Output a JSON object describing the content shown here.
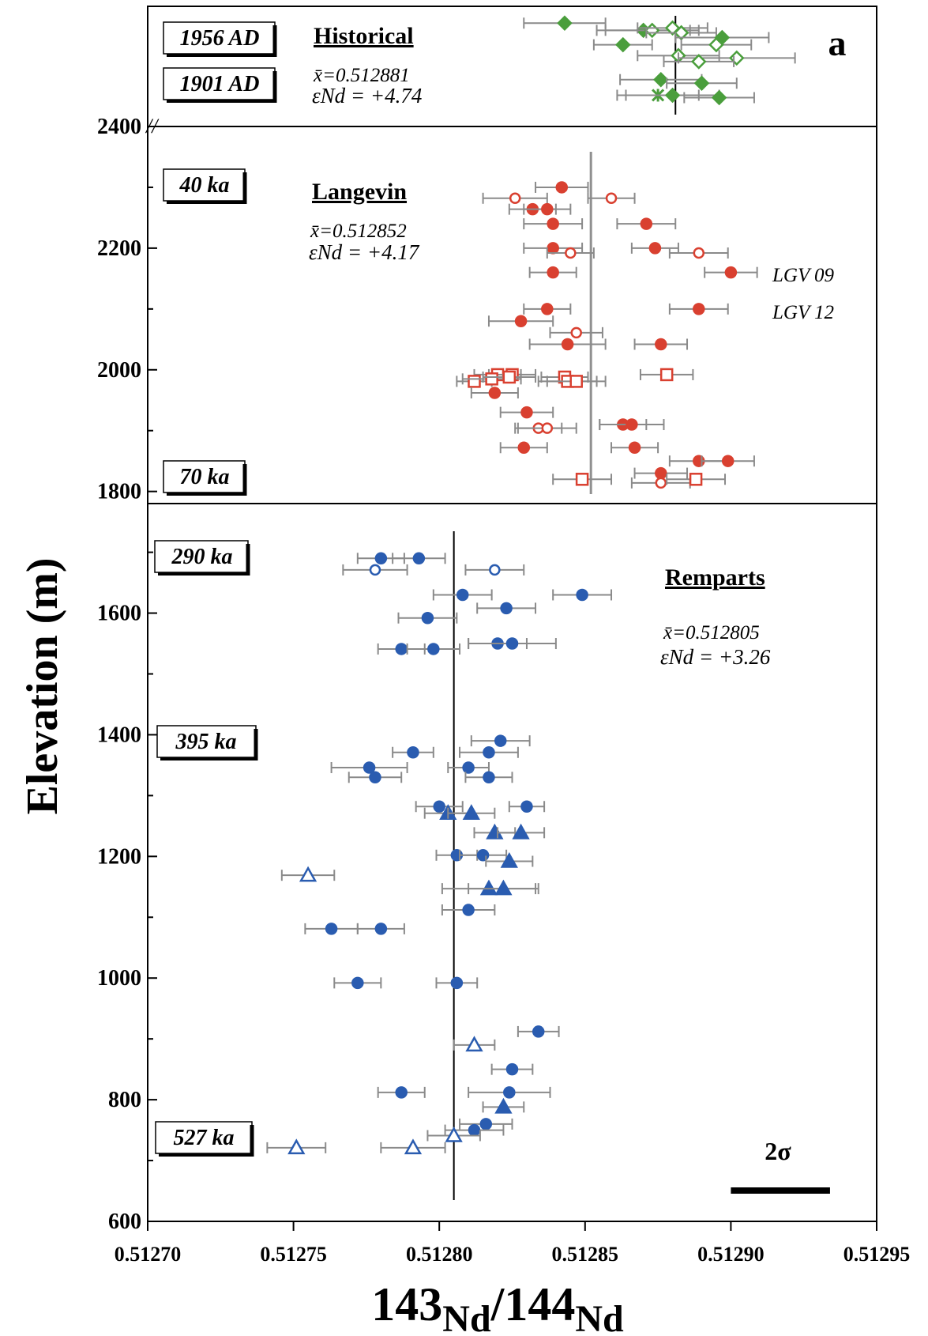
{
  "chart_data": {
    "type": "scatter",
    "panel_letter": "a",
    "xlabel_main": "Nd",
    "xlabel_sup1": "143",
    "xlabel_sup2": "144",
    "xlabel_slash": "/",
    "ylabel": "Elevation (m)",
    "xlim": [
      0.5127,
      0.51295
    ],
    "ylim": [
      600,
      2400
    ],
    "x_ticks": [
      "0.51270",
      "0.51275",
      "0.51280",
      "0.51285",
      "0.51290",
      "0.51295"
    ],
    "y_ticks": [
      "600",
      "800",
      "1000",
      "1200",
      "1400",
      "1600",
      "1800",
      "2000",
      "2200",
      "2400"
    ],
    "axis_break_mark": "//",
    "scale_bar": {
      "label": "2σ",
      "x_start": 0.5129,
      "x_end": 0.512934
    },
    "historical_panel": {
      "title": "Historical",
      "age_top": "1956 AD",
      "age_bottom": "1901 AD",
      "mean_text": "x̄=0.512881",
      "eps_text": "εNd = +4.74",
      "mean": 0.512881,
      "color": "#4a9e3c",
      "points": [
        {
          "x": 0.512843,
          "r": 0.86,
          "err": 1.4e-05,
          "marker": "diamond-filled"
        },
        {
          "x": 0.51287,
          "r": 0.8,
          "err": 1.6e-05,
          "marker": "diamond-filled"
        },
        {
          "x": 0.512873,
          "r": 0.8,
          "err": 1.6e-05,
          "marker": "diamond-open"
        },
        {
          "x": 0.51288,
          "r": 0.82,
          "err": 1.2e-05,
          "marker": "diamond-open"
        },
        {
          "x": 0.512883,
          "r": 0.78,
          "err": 1.2e-05,
          "marker": "diamond-open"
        },
        {
          "x": 0.512897,
          "r": 0.74,
          "err": 1.6e-05,
          "marker": "diamond-filled"
        },
        {
          "x": 0.512895,
          "r": 0.68,
          "err": 1.2e-05,
          "marker": "diamond-open"
        },
        {
          "x": 0.512863,
          "r": 0.68,
          "err": 1e-05,
          "marker": "diamond-filled"
        },
        {
          "x": 0.512882,
          "r": 0.59,
          "err": 1.4e-05,
          "marker": "diamond-open"
        },
        {
          "x": 0.512902,
          "r": 0.57,
          "err": 2e-05,
          "marker": "diamond-open"
        },
        {
          "x": 0.512889,
          "r": 0.54,
          "err": 1.2e-05,
          "marker": "diamond-open"
        },
        {
          "x": 0.512876,
          "r": 0.39,
          "err": 1.4e-05,
          "marker": "diamond-filled"
        },
        {
          "x": 0.51289,
          "r": 0.36,
          "err": 1.2e-05,
          "marker": "diamond-filled"
        },
        {
          "x": 0.512875,
          "r": 0.26,
          "err": 1.4e-05,
          "marker": "asterisk"
        },
        {
          "x": 0.51288,
          "r": 0.26,
          "err": 1.6e-05,
          "marker": "diamond-filled"
        },
        {
          "x": 0.512896,
          "r": 0.24,
          "err": 1.2e-05,
          "marker": "diamond-filled"
        }
      ]
    },
    "langevin_panel": {
      "title": "Langevin",
      "age_top": "40 ka",
      "age_bottom": "70 ka",
      "mean_text": "x̄=0.512852",
      "eps_text": "εNd = +4.17",
      "mean": 0.512852,
      "label_1": "LGV 09",
      "label_2": "LGV 12",
      "color": "#d94030",
      "points": [
        {
          "x": 0.512842,
          "y": 2300,
          "err": 9e-06,
          "marker": "circle-filled"
        },
        {
          "x": 0.512826,
          "y": 2282,
          "err": 1.1e-05,
          "marker": "circle-open"
        },
        {
          "x": 0.512859,
          "y": 2282,
          "err": 8e-06,
          "marker": "circle-open"
        },
        {
          "x": 0.512832,
          "y": 2264,
          "err": 8e-06,
          "marker": "circle-filled"
        },
        {
          "x": 0.512837,
          "y": 2264,
          "err": 8e-06,
          "marker": "circle-filled"
        },
        {
          "x": 0.512839,
          "y": 2240,
          "err": 1e-05,
          "marker": "circle-filled"
        },
        {
          "x": 0.512871,
          "y": 2240,
          "err": 1e-05,
          "marker": "circle-filled"
        },
        {
          "x": 0.512839,
          "y": 2200,
          "err": 1e-05,
          "marker": "circle-filled"
        },
        {
          "x": 0.512845,
          "y": 2192,
          "err": 8e-06,
          "marker": "circle-open"
        },
        {
          "x": 0.512874,
          "y": 2200,
          "err": 8e-06,
          "marker": "circle-filled"
        },
        {
          "x": 0.512889,
          "y": 2192,
          "err": 1e-05,
          "marker": "circle-open"
        },
        {
          "x": 0.512839,
          "y": 2160,
          "err": 8e-06,
          "marker": "circle-filled"
        },
        {
          "x": 0.5129,
          "y": 2160,
          "err": 9e-06,
          "marker": "circle-filled",
          "label": "LGV 09"
        },
        {
          "x": 0.512837,
          "y": 2100,
          "err": 8e-06,
          "marker": "circle-filled"
        },
        {
          "x": 0.512889,
          "y": 2100,
          "err": 1e-05,
          "marker": "circle-filled",
          "label": "LGV 12"
        },
        {
          "x": 0.512828,
          "y": 2080,
          "err": 1.1e-05,
          "marker": "circle-filled"
        },
        {
          "x": 0.512847,
          "y": 2061,
          "err": 9e-06,
          "marker": "circle-open"
        },
        {
          "x": 0.512844,
          "y": 2042,
          "err": 1.3e-05,
          "marker": "circle-filled"
        },
        {
          "x": 0.512876,
          "y": 2042,
          "err": 9e-06,
          "marker": "circle-filled"
        },
        {
          "x": 0.51282,
          "y": 1992,
          "err": 8e-06,
          "marker": "square-open"
        },
        {
          "x": 0.512825,
          "y": 1992,
          "err": 8e-06,
          "marker": "square-open"
        },
        {
          "x": 0.512843,
          "y": 1988,
          "err": 8e-06,
          "marker": "square-open"
        },
        {
          "x": 0.512878,
          "y": 1992,
          "err": 9e-06,
          "marker": "square-open"
        },
        {
          "x": 0.512812,
          "y": 1981,
          "err": 6e-06,
          "marker": "square-open"
        },
        {
          "x": 0.512818,
          "y": 1985,
          "err": 1e-05,
          "marker": "square-open"
        },
        {
          "x": 0.512824,
          "y": 1988,
          "err": 9e-06,
          "marker": "square-open"
        },
        {
          "x": 0.512844,
          "y": 1981,
          "err": 1e-05,
          "marker": "square-open"
        },
        {
          "x": 0.512847,
          "y": 1981,
          "err": 1e-05,
          "marker": "square-open"
        },
        {
          "x": 0.512819,
          "y": 1962,
          "err": 8e-06,
          "marker": "circle-filled"
        },
        {
          "x": 0.51283,
          "y": 1930,
          "err": 9e-06,
          "marker": "circle-filled"
        },
        {
          "x": 0.512834,
          "y": 1904,
          "err": 8e-06,
          "marker": "circle-open"
        },
        {
          "x": 0.512837,
          "y": 1904,
          "err": 1e-05,
          "marker": "circle-open"
        },
        {
          "x": 0.512863,
          "y": 1910,
          "err": 8e-06,
          "marker": "circle-filled"
        },
        {
          "x": 0.512866,
          "y": 1910,
          "err": 1.1e-05,
          "marker": "circle-filled"
        },
        {
          "x": 0.512829,
          "y": 1872,
          "err": 8e-06,
          "marker": "circle-filled"
        },
        {
          "x": 0.512867,
          "y": 1872,
          "err": 8e-06,
          "marker": "circle-filled"
        },
        {
          "x": 0.512889,
          "y": 1850,
          "err": 1e-05,
          "marker": "circle-filled"
        },
        {
          "x": 0.512899,
          "y": 1850,
          "err": 9e-06,
          "marker": "circle-filled"
        },
        {
          "x": 0.512876,
          "y": 1830,
          "err": 9e-06,
          "marker": "circle-filled"
        },
        {
          "x": 0.512849,
          "y": 1820,
          "err": 1e-05,
          "marker": "square-open"
        },
        {
          "x": 0.512876,
          "y": 1814,
          "err": 1e-05,
          "marker": "circle-open"
        },
        {
          "x": 0.512888,
          "y": 1820,
          "err": 1e-05,
          "marker": "square-open"
        }
      ]
    },
    "remparts_panel": {
      "title": "Remparts",
      "age_top": "290 ka",
      "age_middle": "395 ka",
      "age_bottom": "527 ka",
      "mean_text": "x̄=0.512805",
      "eps_text": "εNd = +3.26",
      "mean": 0.512805,
      "color": "#2a5cb0",
      "points": [
        {
          "x": 0.51278,
          "y": 1690,
          "err": 8e-06,
          "marker": "circle-filled"
        },
        {
          "x": 0.512793,
          "y": 1690,
          "err": 9e-06,
          "marker": "circle-filled"
        },
        {
          "x": 0.512778,
          "y": 1671,
          "err": 1.1e-05,
          "marker": "circle-open"
        },
        {
          "x": 0.512819,
          "y": 1671,
          "err": 1e-05,
          "marker": "circle-open"
        },
        {
          "x": 0.512808,
          "y": 1630,
          "err": 1e-05,
          "marker": "circle-filled"
        },
        {
          "x": 0.512849,
          "y": 1630,
          "err": 1e-05,
          "marker": "circle-filled"
        },
        {
          "x": 0.512796,
          "y": 1592,
          "err": 1e-05,
          "marker": "circle-filled"
        },
        {
          "x": 0.512823,
          "y": 1608,
          "err": 1e-05,
          "marker": "circle-filled"
        },
        {
          "x": 0.512787,
          "y": 1541,
          "err": 8e-06,
          "marker": "circle-filled"
        },
        {
          "x": 0.512798,
          "y": 1541,
          "err": 9e-06,
          "marker": "circle-filled"
        },
        {
          "x": 0.51282,
          "y": 1550,
          "err": 1e-05,
          "marker": "circle-filled"
        },
        {
          "x": 0.512825,
          "y": 1550,
          "err": 1.5e-05,
          "marker": "circle-filled"
        },
        {
          "x": 0.512821,
          "y": 1390,
          "err": 1e-05,
          "marker": "circle-filled"
        },
        {
          "x": 0.512791,
          "y": 1371,
          "err": 7e-06,
          "marker": "circle-filled"
        },
        {
          "x": 0.512817,
          "y": 1371,
          "err": 1e-05,
          "marker": "circle-filled"
        },
        {
          "x": 0.512776,
          "y": 1346,
          "err": 1.3e-05,
          "marker": "circle-filled"
        },
        {
          "x": 0.51281,
          "y": 1346,
          "err": 7e-06,
          "marker": "circle-filled"
        },
        {
          "x": 0.512778,
          "y": 1330,
          "err": 9e-06,
          "marker": "circle-filled"
        },
        {
          "x": 0.512817,
          "y": 1330,
          "err": 8e-06,
          "marker": "circle-filled"
        },
        {
          "x": 0.5128,
          "y": 1282,
          "err": 8e-06,
          "marker": "circle-filled"
        },
        {
          "x": 0.51283,
          "y": 1282,
          "err": 6e-06,
          "marker": "circle-filled"
        },
        {
          "x": 0.512803,
          "y": 1271,
          "err": 8e-06,
          "marker": "triangle-filled"
        },
        {
          "x": 0.512811,
          "y": 1271,
          "err": 8e-06,
          "marker": "triangle-filled"
        },
        {
          "x": 0.512819,
          "y": 1239,
          "err": 7e-06,
          "marker": "triangle-filled"
        },
        {
          "x": 0.512828,
          "y": 1239,
          "err": 8e-06,
          "marker": "triangle-filled"
        },
        {
          "x": 0.512806,
          "y": 1202,
          "err": 7e-06,
          "marker": "circle-filled"
        },
        {
          "x": 0.512815,
          "y": 1202,
          "err": 8e-06,
          "marker": "circle-filled"
        },
        {
          "x": 0.512824,
          "y": 1192,
          "err": 8e-06,
          "marker": "triangle-filled"
        },
        {
          "x": 0.512755,
          "y": 1169,
          "err": 9e-06,
          "marker": "triangle-open"
        },
        {
          "x": 0.512817,
          "y": 1147,
          "err": 1.6e-05,
          "marker": "triangle-filled"
        },
        {
          "x": 0.512822,
          "y": 1147,
          "err": 1.2e-05,
          "marker": "triangle-filled"
        },
        {
          "x": 0.51281,
          "y": 1112,
          "err": 9e-06,
          "marker": "circle-filled"
        },
        {
          "x": 0.512763,
          "y": 1081,
          "err": 9e-06,
          "marker": "circle-filled"
        },
        {
          "x": 0.51278,
          "y": 1081,
          "err": 8e-06,
          "marker": "circle-filled"
        },
        {
          "x": 0.512772,
          "y": 992,
          "err": 8e-06,
          "marker": "circle-filled"
        },
        {
          "x": 0.512806,
          "y": 992,
          "err": 7e-06,
          "marker": "circle-filled"
        },
        {
          "x": 0.512834,
          "y": 912,
          "err": 7e-06,
          "marker": "circle-filled"
        },
        {
          "x": 0.512812,
          "y": 890,
          "err": 7e-06,
          "marker": "triangle-open"
        },
        {
          "x": 0.512825,
          "y": 850,
          "err": 7e-06,
          "marker": "circle-filled"
        },
        {
          "x": 0.512787,
          "y": 812,
          "err": 8e-06,
          "marker": "circle-filled"
        },
        {
          "x": 0.512824,
          "y": 812,
          "err": 1.4e-05,
          "marker": "circle-filled"
        },
        {
          "x": 0.512822,
          "y": 788,
          "err": 7e-06,
          "marker": "triangle-filled"
        },
        {
          "x": 0.512816,
          "y": 760,
          "err": 9e-06,
          "marker": "circle-filled"
        },
        {
          "x": 0.512812,
          "y": 750,
          "err": 1e-05,
          "marker": "circle-filled"
        },
        {
          "x": 0.512805,
          "y": 741,
          "err": 9e-06,
          "marker": "triangle-open"
        },
        {
          "x": 0.512751,
          "y": 721,
          "err": 1e-05,
          "marker": "triangle-open"
        },
        {
          "x": 0.512791,
          "y": 721,
          "err": 1.1e-05,
          "marker": "triangle-open"
        }
      ]
    }
  }
}
